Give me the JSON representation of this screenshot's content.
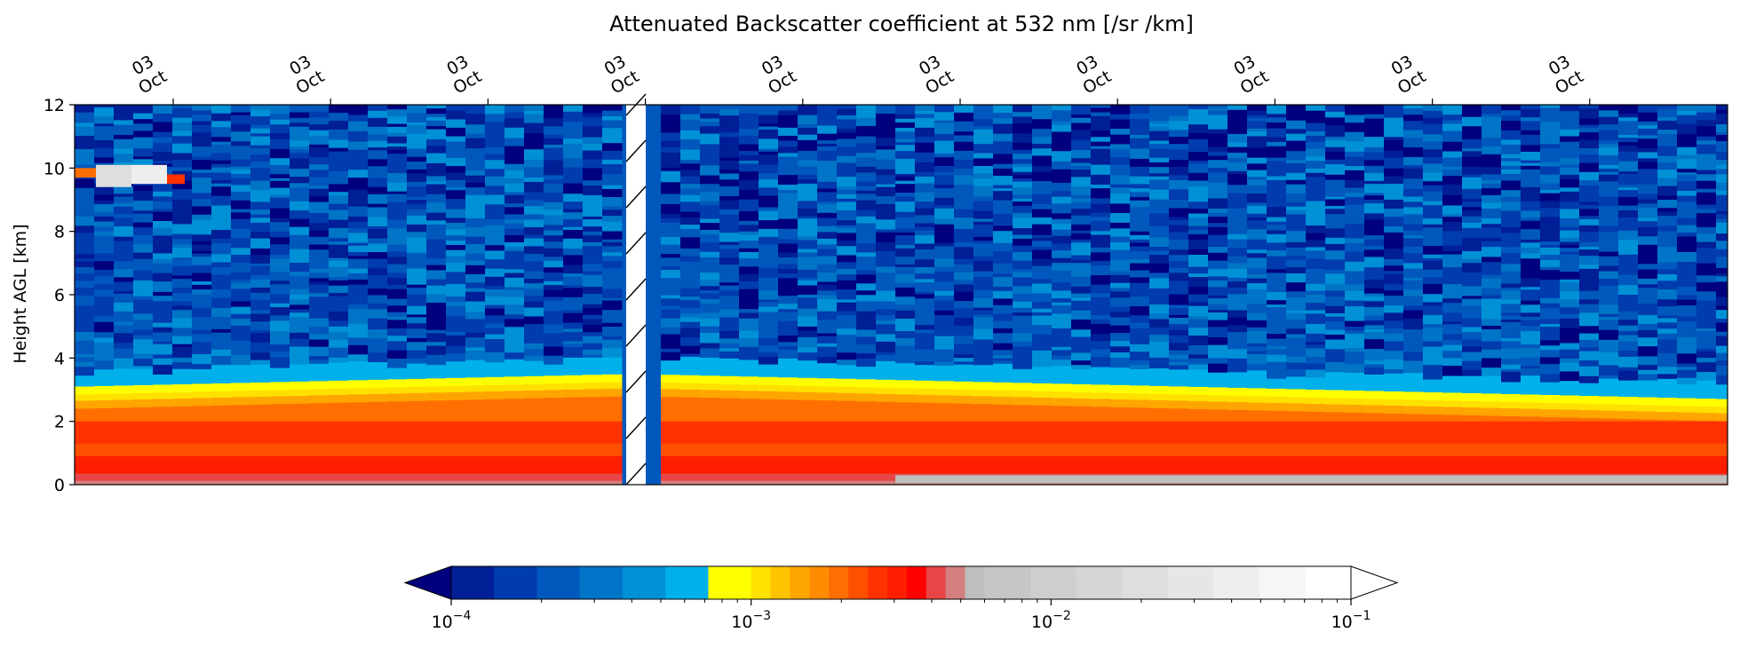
{
  "chart_data": {
    "type": "heatmap",
    "title": "Attenuated Backscatter coefficient at 532 nm [/sr /km]",
    "ylabel": "Height AGL [km]",
    "xlabel": "",
    "ylim": [
      0,
      12
    ],
    "y_ticks": [
      "0",
      "2",
      "4",
      "6",
      "8",
      "10",
      "12"
    ],
    "x_ticks": [
      {
        "day": "03",
        "month": "Oct"
      },
      {
        "day": "03",
        "month": "Oct"
      },
      {
        "day": "03",
        "month": "Oct"
      },
      {
        "day": "03",
        "month": "Oct"
      },
      {
        "day": "03",
        "month": "Oct"
      },
      {
        "day": "03",
        "month": "Oct"
      },
      {
        "day": "03",
        "month": "Oct"
      },
      {
        "day": "03",
        "month": "Oct"
      },
      {
        "day": "03",
        "month": "Oct"
      },
      {
        "day": "03",
        "month": "Oct"
      }
    ],
    "x_axis_position": "top",
    "data_gap": "hatched gap in data near the 4th tick",
    "layers_km": {
      "aerosol_layer_top_start": 3.1,
      "aerosol_layer_top_end": 2.7,
      "high_cloud_km": 9.8
    },
    "colorbar": {
      "scale": "log",
      "orientation": "horizontal",
      "position": "bottom",
      "extend": "both",
      "range": [
        0.0001,
        0.1
      ],
      "tick_labels": [
        {
          "base": "10",
          "exp": "−4"
        },
        {
          "base": "10",
          "exp": "−3"
        },
        {
          "base": "10",
          "exp": "−2"
        },
        {
          "base": "10",
          "exp": "−1"
        }
      ],
      "under_color": "#00007f",
      "over_color": "#ffffff",
      "colors": [
        "#001e96",
        "#003cae",
        "#0058bc",
        "#0074c6",
        "#0090d6",
        "#00b0ea",
        "#ffff00",
        "#ffe100",
        "#ffc300",
        "#ffa500",
        "#ff8c00",
        "#ff6e00",
        "#ff5000",
        "#ff3200",
        "#ff1e00",
        "#ff0000",
        "#e84646",
        "#d47f7f",
        "#bebebe",
        "#c6c6c6",
        "#cecece",
        "#d6d6d6",
        "#dedede",
        "#e6e6e6",
        "#eeeeee",
        "#f6f6f6"
      ]
    }
  }
}
